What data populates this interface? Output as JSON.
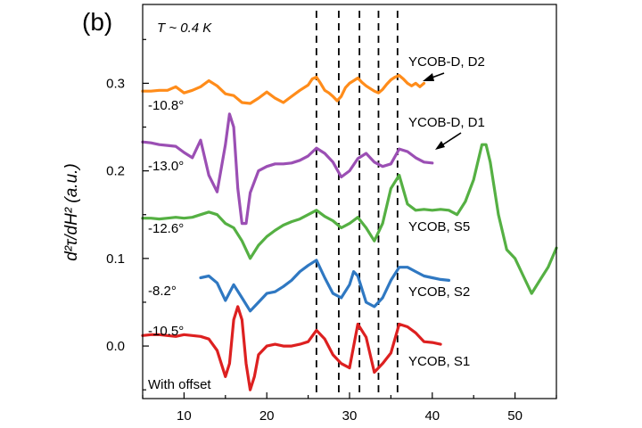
{
  "chart_data": {
    "type": "line",
    "panel_label": "(b)",
    "temperature_note": "T ~ 0.4 K",
    "offset_note": "With offset",
    "xlabel": "",
    "ylabel": "d²τ/dH² (a.u.)",
    "xlim": [
      5,
      55
    ],
    "ylim": [
      -0.06,
      0.39
    ],
    "x_ticks": [
      10,
      20,
      30,
      40,
      50
    ],
    "y_ticks": [
      0.0,
      0.1,
      0.2,
      0.3
    ],
    "y_tick_labels": [
      "0.0",
      "0.1",
      "0.2",
      "0.3"
    ],
    "vlines_dashed": [
      26.0,
      28.7,
      31.2,
      33.5,
      35.8
    ],
    "series": [
      {
        "name": "YCOB-D, D2",
        "angle": "-10.8°",
        "color": "#ff8c1a",
        "x": [
          5,
          6,
          7,
          8,
          9,
          10,
          11,
          12,
          13,
          14,
          15,
          16,
          17,
          18,
          19,
          20,
          21,
          22,
          23,
          24,
          25,
          25.5,
          26,
          26.5,
          27,
          27.5,
          28,
          28.5,
          29,
          29.5,
          30,
          30.5,
          31,
          31.5,
          32,
          32.5,
          33,
          33.5,
          34,
          34.5,
          35,
          35.5,
          36,
          36.5,
          37,
          37.5,
          38,
          38.5,
          39
        ],
        "y": [
          0.291,
          0.291,
          0.292,
          0.292,
          0.296,
          0.289,
          0.292,
          0.296,
          0.303,
          0.297,
          0.288,
          0.286,
          0.278,
          0.277,
          0.283,
          0.29,
          0.283,
          0.278,
          0.285,
          0.292,
          0.298,
          0.305,
          0.307,
          0.3,
          0.292,
          0.289,
          0.285,
          0.28,
          0.285,
          0.295,
          0.3,
          0.303,
          0.306,
          0.301,
          0.297,
          0.294,
          0.291,
          0.289,
          0.293,
          0.299,
          0.304,
          0.307,
          0.309,
          0.305,
          0.3,
          0.297,
          0.3,
          0.296,
          0.3
        ]
      },
      {
        "name": "YCOB-D, D1",
        "angle": "-13.0°",
        "color": "#9b4fb4",
        "x": [
          5,
          6,
          7,
          8,
          9,
          10,
          11,
          12,
          13,
          14,
          15,
          15.5,
          16,
          16.5,
          17,
          17.5,
          18,
          19,
          20,
          21,
          22,
          23,
          24,
          25,
          26,
          27,
          28,
          29,
          30,
          31,
          32,
          33,
          34,
          35,
          36,
          37,
          38,
          39,
          40
        ],
        "y": [
          0.233,
          0.232,
          0.23,
          0.229,
          0.228,
          0.221,
          0.215,
          0.235,
          0.195,
          0.176,
          0.23,
          0.265,
          0.25,
          0.18,
          0.14,
          0.14,
          0.175,
          0.2,
          0.205,
          0.208,
          0.208,
          0.209,
          0.212,
          0.217,
          0.226,
          0.22,
          0.21,
          0.193,
          0.2,
          0.214,
          0.22,
          0.21,
          0.205,
          0.208,
          0.225,
          0.222,
          0.215,
          0.21,
          0.209
        ]
      },
      {
        "name": "YCOB, S5",
        "angle": "-12.6°",
        "color": "#55b043",
        "x": [
          5,
          6,
          7,
          8,
          9,
          10,
          11,
          12,
          13,
          14,
          15,
          16,
          17,
          18,
          19,
          20,
          21,
          22,
          23,
          24,
          25,
          26,
          27,
          28,
          29,
          30,
          31,
          32,
          33,
          34,
          35,
          36,
          37,
          38,
          39,
          40,
          41,
          42,
          43,
          44,
          45,
          46,
          46.5,
          47,
          48,
          49,
          50,
          51,
          52,
          53,
          54,
          55
        ],
        "y": [
          0.146,
          0.146,
          0.145,
          0.146,
          0.147,
          0.146,
          0.147,
          0.15,
          0.153,
          0.15,
          0.14,
          0.135,
          0.12,
          0.1,
          0.115,
          0.125,
          0.132,
          0.138,
          0.142,
          0.145,
          0.15,
          0.155,
          0.148,
          0.143,
          0.135,
          0.14,
          0.147,
          0.135,
          0.12,
          0.14,
          0.18,
          0.195,
          0.162,
          0.155,
          0.156,
          0.155,
          0.156,
          0.155,
          0.15,
          0.165,
          0.19,
          0.23,
          0.23,
          0.21,
          0.15,
          0.11,
          0.1,
          0.08,
          0.06,
          0.075,
          0.09,
          0.112
        ]
      },
      {
        "name": "YCOB, S2",
        "angle": "-8.2°",
        "color": "#2f78c2",
        "x": [
          12,
          13,
          14,
          15,
          16,
          17,
          18,
          19,
          20,
          21,
          22,
          23,
          24,
          25,
          26,
          27,
          28,
          29,
          30,
          30.5,
          31,
          32,
          33,
          34,
          35,
          36,
          37,
          38,
          39,
          40,
          41,
          42
        ],
        "y": [
          0.078,
          0.08,
          0.072,
          0.052,
          0.07,
          0.055,
          0.04,
          0.05,
          0.06,
          0.062,
          0.068,
          0.075,
          0.085,
          0.092,
          0.098,
          0.078,
          0.06,
          0.055,
          0.07,
          0.085,
          0.08,
          0.05,
          0.045,
          0.055,
          0.075,
          0.09,
          0.09,
          0.085,
          0.08,
          0.078,
          0.076,
          0.075
        ]
      },
      {
        "name": "YCOB, S1",
        "angle": "-10.5°",
        "color": "#dd2020",
        "x": [
          5,
          6,
          7,
          8,
          9,
          10,
          11,
          12,
          13,
          14,
          15,
          15.5,
          16,
          16.5,
          17,
          17.5,
          18,
          18.5,
          19,
          20,
          21,
          22,
          23,
          24,
          25,
          26,
          27,
          28,
          29,
          30,
          31,
          32,
          33,
          34,
          35,
          36,
          37,
          38,
          39,
          40,
          41
        ],
        "y": [
          0.012,
          0.013,
          0.013,
          0.012,
          0.011,
          0.013,
          0.012,
          0.011,
          0.008,
          -0.005,
          -0.035,
          -0.02,
          0.03,
          0.045,
          0.03,
          -0.02,
          -0.05,
          -0.035,
          -0.01,
          0.0,
          0.002,
          0.0,
          0.0,
          0.002,
          0.005,
          0.018,
          0.008,
          -0.01,
          -0.02,
          -0.025,
          0.025,
          0.01,
          -0.03,
          -0.02,
          -0.008,
          0.025,
          0.022,
          0.015,
          0.005,
          0.004,
          0.002
        ]
      }
    ],
    "annotations": [
      {
        "text": "YCOB-D, D2",
        "series": "YCOB-D, D2",
        "arrow": true
      },
      {
        "text": "YCOB-D, D1",
        "series": "YCOB-D, D1",
        "arrow": true
      },
      {
        "text": "YCOB, S5",
        "series": "YCOB, S5",
        "arrow": false
      },
      {
        "text": "YCOB, S2",
        "series": "YCOB, S2",
        "arrow": false
      },
      {
        "text": "YCOB, S1",
        "series": "YCOB, S1",
        "arrow": false
      }
    ]
  }
}
